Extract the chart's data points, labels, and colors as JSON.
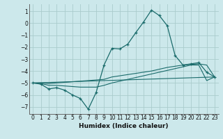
{
  "xlabel": "Humidex (Indice chaleur)",
  "background_color": "#cce8eb",
  "grid_color": "#aacccc",
  "line_color": "#1a6b6b",
  "xlim": [
    -0.5,
    23.5
  ],
  "ylim": [
    -7.6,
    1.6
  ],
  "yticks": [
    1,
    0,
    -1,
    -2,
    -3,
    -4,
    -5,
    -6,
    -7
  ],
  "xticks": [
    0,
    1,
    2,
    3,
    4,
    5,
    6,
    7,
    8,
    9,
    10,
    11,
    12,
    13,
    14,
    15,
    16,
    17,
    18,
    19,
    20,
    21,
    22,
    23
  ],
  "line1_x": [
    0,
    1,
    2,
    3,
    4,
    5,
    6,
    7,
    8,
    9,
    10,
    11,
    12,
    13,
    14,
    15,
    16,
    17,
    18,
    19,
    20,
    21,
    22,
    23
  ],
  "line1_y": [
    -5.0,
    -5.1,
    -5.5,
    -5.4,
    -5.6,
    -6.0,
    -6.3,
    -7.2,
    -5.8,
    -3.5,
    -2.1,
    -2.15,
    -1.75,
    -0.8,
    0.1,
    1.1,
    0.65,
    -0.2,
    -2.7,
    -3.5,
    -3.4,
    -3.3,
    -4.1,
    -4.5
  ],
  "line2_x": [
    0,
    23
  ],
  "line2_y": [
    -5.0,
    -4.5
  ],
  "line3_x": [
    0,
    1,
    2,
    3,
    4,
    5,
    6,
    7,
    8,
    9,
    10,
    11,
    12,
    13,
    14,
    15,
    16,
    17,
    18,
    19,
    20,
    21,
    22,
    23
  ],
  "line3_y": [
    -5.0,
    -5.0,
    -5.05,
    -5.0,
    -4.95,
    -4.9,
    -4.85,
    -4.8,
    -4.75,
    -4.7,
    -4.5,
    -4.4,
    -4.3,
    -4.2,
    -4.1,
    -4.0,
    -3.85,
    -3.7,
    -3.6,
    -3.5,
    -3.45,
    -3.4,
    -3.5,
    -4.5
  ],
  "line4_x": [
    0,
    1,
    2,
    3,
    4,
    5,
    6,
    7,
    8,
    9,
    10,
    11,
    12,
    13,
    14,
    15,
    16,
    17,
    18,
    19,
    20,
    21,
    22,
    23
  ],
  "line4_y": [
    -5.0,
    -5.05,
    -5.2,
    -5.2,
    -5.25,
    -5.3,
    -5.35,
    -5.35,
    -5.35,
    -5.2,
    -5.0,
    -4.85,
    -4.7,
    -4.55,
    -4.4,
    -4.25,
    -4.1,
    -3.95,
    -3.8,
    -3.65,
    -3.5,
    -3.5,
    -4.8,
    -4.5
  ]
}
